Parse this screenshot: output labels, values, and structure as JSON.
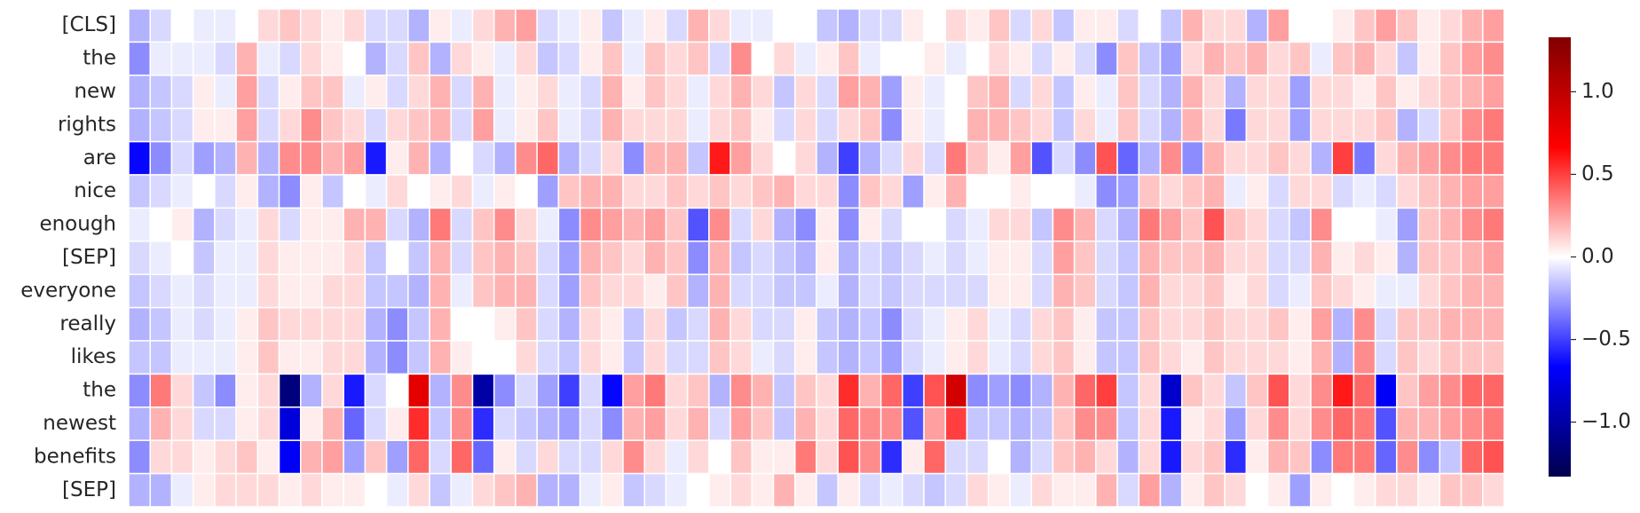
{
  "chart_data": {
    "type": "heatmap",
    "rows": [
      "[CLS]",
      "the",
      "new",
      "rights",
      "are",
      "nice",
      "enough",
      "[SEP]",
      "everyone",
      "really",
      "likes",
      "the",
      "newest",
      "benefits",
      "[SEP]"
    ],
    "values": [
      [
        -0.2,
        -0.1,
        0,
        -0.05,
        -0.05,
        0,
        0.1,
        0.15,
        0.1,
        0.05,
        0.1,
        -0.1,
        -0.1,
        -0.2,
        0.05,
        -0.05,
        0.1,
        0.2,
        0.25,
        -0.1,
        -0.05,
        0.05,
        -0.15,
        -0.05,
        0.05,
        -0.1,
        0.2,
        0.1,
        -0.05,
        -0.05,
        0,
        0,
        -0.15,
        -0.2,
        -0.1,
        -0.1,
        0.05,
        0,
        0.1,
        0.05,
        0.15,
        -0.1,
        0.1,
        -0.15,
        0.05,
        0.05,
        -0.1,
        0,
        -0.15,
        0.2,
        0.1,
        0.1,
        -0.2,
        0.25,
        0,
        0,
        0.05,
        0.15,
        0.25,
        0.15,
        0.05,
        0.1,
        0.2,
        0.25
      ],
      [
        -0.3,
        -0.05,
        -0.05,
        -0.05,
        -0.1,
        0.2,
        -0.05,
        -0.1,
        0.1,
        0.05,
        0,
        -0.2,
        -0.1,
        0.15,
        -0.2,
        0.1,
        0.05,
        -0.05,
        0.1,
        -0.15,
        -0.1,
        0.05,
        0.15,
        -0.05,
        0.15,
        0.1,
        0.15,
        -0.1,
        0.3,
        0,
        0.1,
        -0.05,
        0.05,
        0.15,
        -0.05,
        0,
        0,
        0.05,
        -0.05,
        0,
        0.1,
        0.05,
        -0.1,
        0.05,
        -0.1,
        -0.3,
        0.15,
        -0.15,
        -0.25,
        0.1,
        0.2,
        0.15,
        0.2,
        0.1,
        0.15,
        -0.05,
        0.15,
        0.2,
        0.1,
        -0.15,
        0.05,
        0.15,
        0.25,
        0.3
      ],
      [
        -0.2,
        -0.15,
        -0.1,
        0.05,
        -0.05,
        0.25,
        -0.1,
        0.05,
        0.15,
        0.15,
        -0.05,
        0.05,
        -0.1,
        0.1,
        0.2,
        -0.1,
        0.2,
        -0.05,
        0.05,
        0.1,
        -0.05,
        -0.1,
        0.2,
        0.05,
        0.15,
        0.1,
        -0.05,
        0.1,
        0.2,
        0.1,
        -0.15,
        0.1,
        -0.1,
        0.25,
        0.2,
        -0.25,
        0.05,
        -0.05,
        0,
        0.15,
        0.2,
        -0.1,
        0.1,
        -0.15,
        0.05,
        -0.05,
        0.15,
        -0.1,
        -0.2,
        0.2,
        0.1,
        -0.2,
        0.1,
        0.1,
        -0.25,
        0.1,
        0.1,
        0.05,
        0.15,
        0.05,
        0.1,
        0.15,
        0.2,
        0.25
      ],
      [
        -0.2,
        -0.15,
        -0.1,
        0.05,
        0.05,
        0.25,
        -0.1,
        0.1,
        0.3,
        0.15,
        0.1,
        -0.1,
        0.1,
        0.15,
        0.2,
        -0.1,
        0.25,
        -0.05,
        0.05,
        0.15,
        -0.05,
        -0.1,
        0.2,
        0.1,
        0.1,
        0.1,
        -0.05,
        0.1,
        0.15,
        0.05,
        -0.1,
        0.1,
        -0.1,
        0.1,
        0.15,
        -0.3,
        0.05,
        -0.05,
        0,
        0.2,
        0.2,
        0.15,
        0.1,
        -0.15,
        0.1,
        -0.05,
        0.15,
        -0.1,
        -0.2,
        0.2,
        0.1,
        -0.35,
        0.1,
        0.1,
        -0.25,
        0.1,
        0.1,
        0.1,
        0.15,
        -0.2,
        -0.1,
        0.15,
        0.3,
        0.35
      ],
      [
        -0.65,
        -0.3,
        -0.1,
        -0.25,
        -0.2,
        0.2,
        -0.2,
        0.3,
        0.3,
        0.2,
        0.25,
        -0.6,
        0.05,
        0.2,
        -0.2,
        0,
        -0.1,
        -0.2,
        0.3,
        0.4,
        -0.2,
        -0.1,
        0.1,
        -0.3,
        0.2,
        0.2,
        -0.15,
        0.6,
        0.25,
        0.1,
        0,
        0.1,
        -0.2,
        -0.5,
        -0.2,
        -0.1,
        0.1,
        -0.1,
        0.35,
        0.15,
        0.05,
        0.25,
        -0.45,
        -0.1,
        -0.3,
        0.45,
        -0.4,
        -0.2,
        0.3,
        -0.3,
        0.2,
        0.1,
        0.1,
        0.15,
        0.1,
        -0.2,
        0.5,
        -0.35,
        0.1,
        0.2,
        0.25,
        0.3,
        0.35,
        0.35
      ],
      [
        -0.15,
        -0.1,
        -0.05,
        0,
        -0.1,
        0.05,
        -0.2,
        -0.3,
        0.05,
        -0.15,
        0,
        -0.05,
        0.1,
        0,
        0.05,
        0.1,
        -0.05,
        0.05,
        0,
        -0.25,
        0.15,
        0.2,
        0.2,
        0.1,
        0.1,
        0.15,
        0.1,
        0.15,
        0.1,
        0.15,
        0.2,
        0.1,
        0.1,
        -0.3,
        0.15,
        0.1,
        -0.25,
        0.05,
        0.2,
        0,
        0,
        0.05,
        0,
        0,
        -0.05,
        -0.3,
        -0.25,
        0.15,
        0.1,
        0.15,
        0.2,
        -0.05,
        0.05,
        -0.1,
        0.1,
        0.1,
        -0.1,
        -0.05,
        -0.1,
        0.1,
        0.15,
        0.2,
        0.25,
        0.25
      ],
      [
        -0.05,
        0,
        0.05,
        -0.2,
        -0.1,
        -0.05,
        0.1,
        -0.1,
        0.05,
        0.05,
        0.2,
        0.2,
        -0.1,
        -0.2,
        0.35,
        -0.1,
        0.15,
        0.3,
        0.1,
        -0.05,
        -0.3,
        0.3,
        0.25,
        0.2,
        0.25,
        0.15,
        -0.45,
        0.3,
        -0.1,
        0.1,
        -0.2,
        -0.3,
        0.05,
        -0.3,
        0.05,
        -0.1,
        0,
        0,
        -0.1,
        -0.05,
        0.1,
        0.1,
        -0.15,
        0.3,
        0.2,
        -0.1,
        -0.2,
        0.35,
        0.25,
        0.15,
        0.45,
        0.15,
        0.1,
        -0.1,
        -0.15,
        0.3,
        0,
        0,
        -0.05,
        -0.25,
        0.15,
        0.2,
        0.3,
        0.35
      ],
      [
        -0.1,
        -0.05,
        0,
        -0.15,
        -0.05,
        -0.05,
        0.1,
        0.05,
        0.05,
        0.05,
        0.1,
        -0.15,
        0,
        -0.15,
        0.2,
        -0.1,
        0.15,
        0.2,
        0.15,
        -0.1,
        -0.25,
        0.2,
        0.15,
        0.1,
        0.2,
        0.15,
        -0.3,
        0.2,
        -0.15,
        -0.1,
        -0.15,
        -0.2,
        0.05,
        -0.2,
        -0.1,
        -0.15,
        -0.1,
        -0.05,
        -0.1,
        -0.05,
        0.05,
        0.05,
        -0.1,
        0.25,
        0.15,
        -0.1,
        -0.15,
        0.2,
        0.15,
        0.15,
        0.2,
        0.1,
        0.1,
        -0.1,
        -0.1,
        0.2,
        0.05,
        0.1,
        0.05,
        -0.2,
        0.15,
        0.15,
        0.2,
        0.25
      ],
      [
        -0.15,
        -0.1,
        -0.05,
        -0.1,
        -0.05,
        -0.05,
        0.1,
        0.05,
        0.05,
        0.1,
        0.1,
        -0.15,
        -0.15,
        -0.2,
        0.2,
        -0.05,
        0.15,
        0.2,
        0.2,
        -0.1,
        -0.25,
        0.15,
        0.1,
        0.1,
        0.05,
        0.15,
        -0.2,
        0.2,
        -0.1,
        -0.1,
        -0.15,
        -0.15,
        -0.05,
        -0.2,
        -0.1,
        -0.15,
        -0.1,
        -0.1,
        -0.1,
        -0.1,
        0.05,
        0.05,
        -0.1,
        0.2,
        0.15,
        -0.1,
        -0.15,
        0.2,
        0.1,
        0.1,
        0.15,
        0.05,
        0.1,
        -0.1,
        -0.05,
        0.15,
        0.1,
        0.05,
        -0.05,
        -0.05,
        0.1,
        0.15,
        0.2,
        0.2
      ],
      [
        -0.2,
        -0.15,
        -0.05,
        -0.1,
        -0.05,
        0.05,
        0.15,
        0.1,
        0.1,
        0.1,
        0.1,
        -0.2,
        -0.3,
        -0.15,
        0.2,
        0,
        0,
        0.05,
        0.15,
        -0.1,
        -0.2,
        0.1,
        0.05,
        -0.15,
        0.1,
        -0.15,
        -0.1,
        0.2,
        0.1,
        -0.1,
        -0.1,
        0.05,
        -0.15,
        -0.2,
        -0.15,
        -0.3,
        -0.1,
        -0.05,
        0.05,
        0.1,
        -0.05,
        -0.1,
        0.1,
        0.15,
        0.05,
        -0.15,
        -0.15,
        0.15,
        0.1,
        0.1,
        0.15,
        0.1,
        0.1,
        0.15,
        0.05,
        0.25,
        -0.2,
        0.3,
        -0.1,
        0.15,
        0.15,
        0.2,
        0.2,
        0.2
      ],
      [
        -0.15,
        -0.15,
        -0.05,
        -0.05,
        -0.05,
        0.05,
        0.15,
        0.05,
        0.05,
        0.1,
        0.1,
        -0.2,
        -0.3,
        -0.15,
        0.2,
        0.05,
        0,
        0,
        0.1,
        -0.1,
        -0.15,
        0.1,
        0.05,
        -0.15,
        0.1,
        -0.1,
        -0.1,
        0.15,
        0.1,
        -0.05,
        -0.1,
        0.05,
        -0.15,
        -0.2,
        -0.15,
        -0.25,
        -0.1,
        -0.05,
        0.05,
        0.1,
        -0.05,
        -0.1,
        0.1,
        0.15,
        0.05,
        -0.15,
        -0.15,
        0.15,
        0.1,
        0.05,
        0.15,
        0.1,
        0.1,
        0.1,
        0.05,
        0.2,
        -0.2,
        0.3,
        -0.1,
        0.15,
        0.1,
        0.15,
        0.15,
        0.15
      ],
      [
        -0.3,
        0.35,
        0.1,
        -0.15,
        -0.3,
        0.05,
        0.1,
        -1.15,
        -0.2,
        0.1,
        -0.6,
        -0.1,
        0,
        0.8,
        -0.2,
        0.3,
        -1.0,
        -0.3,
        -0.1,
        -0.25,
        -0.5,
        -0.1,
        -0.65,
        0.25,
        0.35,
        0.1,
        0.15,
        -0.2,
        0.3,
        0.2,
        -0.15,
        0.15,
        0.1,
        0.55,
        0.2,
        0.4,
        -0.5,
        0.45,
        0.9,
        -0.3,
        -0.25,
        -0.3,
        -0.2,
        0.2,
        0.4,
        0.5,
        -0.15,
        0.1,
        -0.85,
        0.15,
        0.1,
        -0.15,
        0.15,
        0.45,
        0.1,
        0.3,
        0.6,
        0.4,
        -0.7,
        0.15,
        0.25,
        0.3,
        0.4,
        0.4
      ],
      [
        -0.2,
        0.2,
        0.1,
        -0.1,
        -0.1,
        0.05,
        0.1,
        -0.8,
        0.05,
        0.2,
        -0.4,
        -0.1,
        0.05,
        0.55,
        -0.15,
        0.3,
        -0.55,
        -0.1,
        -0.15,
        -0.2,
        -0.25,
        -0.1,
        -0.3,
        0.2,
        0.25,
        0.1,
        0.2,
        -0.1,
        0.25,
        0.15,
        -0.15,
        0.2,
        0.1,
        0.4,
        0.3,
        0.3,
        -0.45,
        0.25,
        0.5,
        -0.15,
        -0.15,
        -0.2,
        -0.15,
        0.15,
        0.3,
        0.3,
        -0.15,
        0.1,
        -0.6,
        0.05,
        0.1,
        -0.25,
        0.1,
        0.3,
        0.1,
        0.3,
        0.4,
        0.35,
        -0.45,
        0.2,
        0.2,
        0.25,
        0.3,
        0.35
      ],
      [
        -0.3,
        0.1,
        0.1,
        0.05,
        0.1,
        0.15,
        0.05,
        -0.7,
        0.2,
        0.25,
        -0.25,
        0.15,
        -0.25,
        0.4,
        -0.1,
        0.4,
        -0.4,
        0.05,
        -0.1,
        0.1,
        -0.1,
        -0.1,
        0.1,
        0.3,
        0.1,
        -0.05,
        0.1,
        0,
        0.15,
        0.05,
        0.05,
        0.35,
        0.1,
        0.45,
        0.3,
        -0.55,
        0.05,
        0.4,
        -0.1,
        -0.1,
        0,
        -0.2,
        -0.1,
        0.15,
        0.2,
        0.1,
        -0.2,
        0.1,
        -0.6,
        0.1,
        0.15,
        -0.55,
        0.05,
        0.2,
        0.15,
        -0.3,
        0.35,
        0.35,
        -0.4,
        0.3,
        -0.3,
        -0.15,
        0.4,
        0.45
      ],
      [
        -0.2,
        -0.2,
        -0.05,
        0.05,
        0.1,
        0.1,
        0.1,
        0.05,
        0.1,
        0.05,
        0.05,
        0,
        -0.05,
        0.1,
        -0.15,
        -0.05,
        0.1,
        0.15,
        0.2,
        -0.2,
        -0.2,
        -0.05,
        0.05,
        -0.15,
        -0.1,
        -0.05,
        0,
        0.05,
        0.1,
        0.05,
        0.2,
        0.05,
        -0.15,
        0.05,
        -0.1,
        -0.05,
        -0.1,
        -0.15,
        -0.1,
        0.1,
        0.05,
        -0.05,
        0.1,
        0.05,
        0.05,
        0.2,
        -0.1,
        0.25,
        -0.2,
        0.05,
        0.15,
        0.1,
        0,
        0.05,
        -0.25,
        0.05,
        0,
        0.05,
        0.1,
        0.1,
        0.05,
        0.15,
        0.15,
        0.1
      ]
    ],
    "colormap": "seismic",
    "clim": [
      -1.33,
      1.33
    ],
    "cticks": [
      {
        "value": -1.0,
        "label": "−1.0"
      },
      {
        "value": -0.5,
        "label": "−0.5"
      },
      {
        "value": 0.0,
        "label": "0.0"
      },
      {
        "value": 0.5,
        "label": "0.5"
      },
      {
        "value": 1.0,
        "label": "1.0"
      }
    ]
  }
}
